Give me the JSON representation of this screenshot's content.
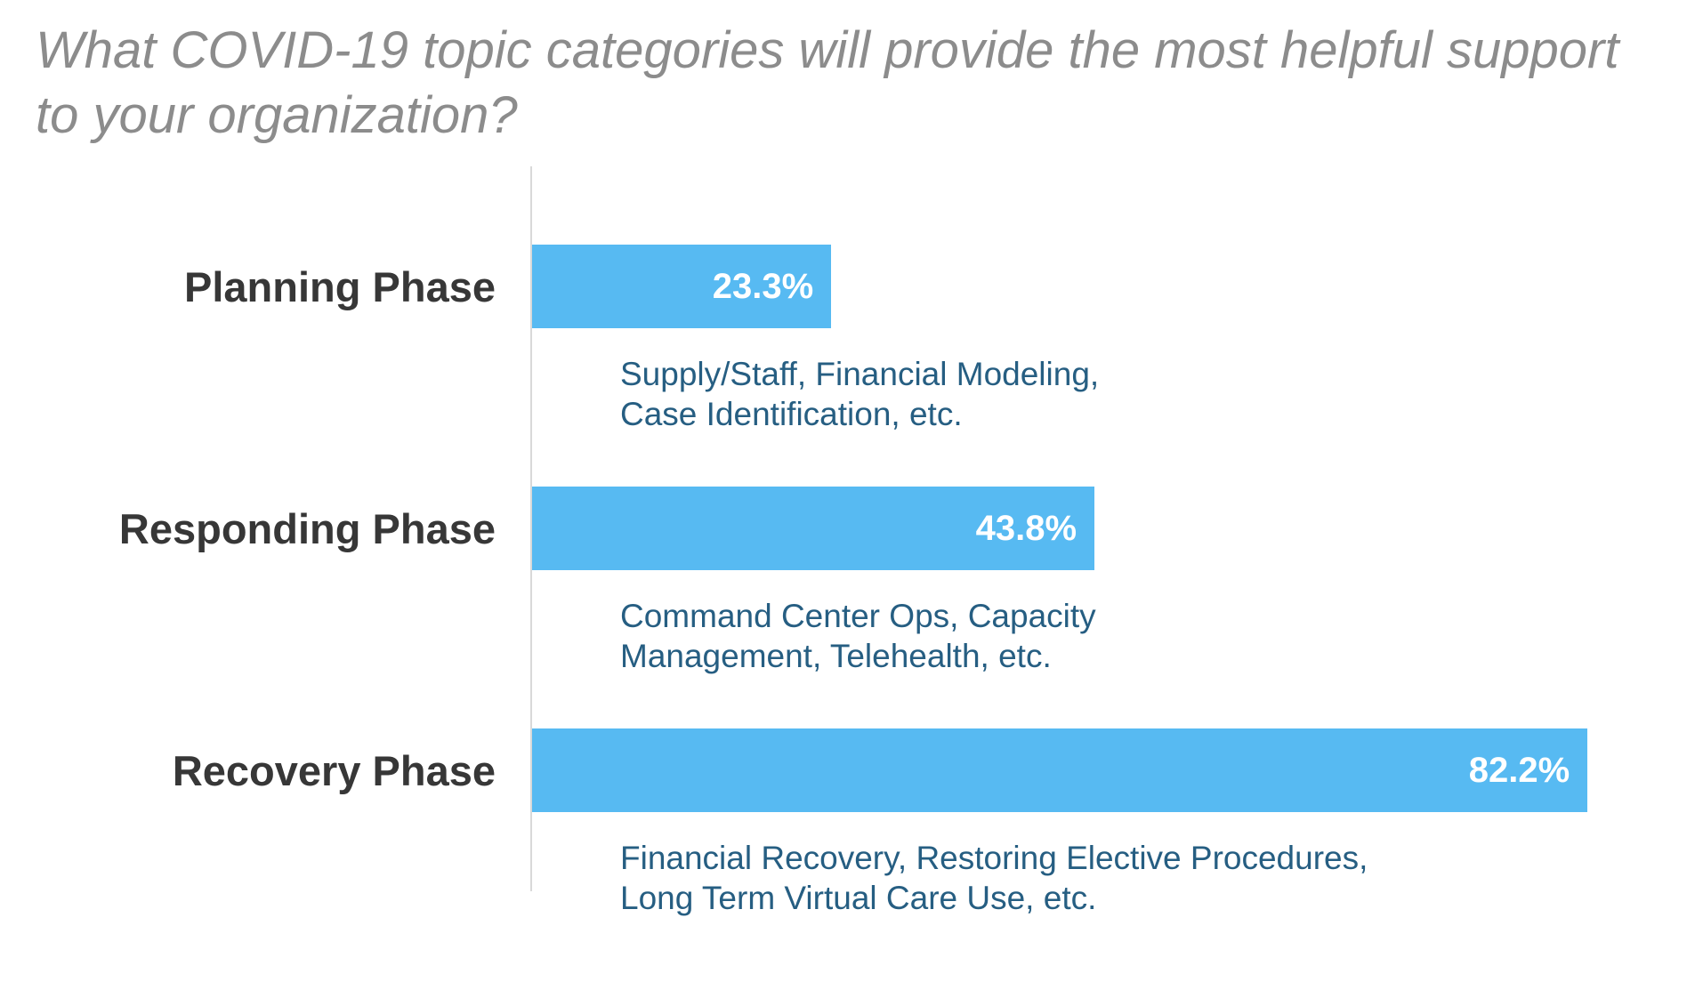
{
  "title": {
    "line1": "What COVID-19 topic categories will provide the most helpful support",
    "line2": "to your organization?"
  },
  "chart_data": {
    "type": "bar",
    "orientation": "horizontal",
    "title": "What COVID-19 topic categories will provide the most helpful support to your organization?",
    "categories": [
      "Planning Phase",
      "Responding Phase",
      "Recovery Phase"
    ],
    "values": [
      23.3,
      43.8,
      82.2
    ],
    "value_labels": [
      "23.3%",
      "43.8%",
      "82.2%"
    ],
    "unit": "%",
    "xlim": [
      0,
      91
    ],
    "grid": false,
    "legend": "none",
    "annotations": [
      "Supply/Staff, Financial Modeling, Case Identification, etc.",
      "Command Center Ops, Capacity Management, Telehealth, etc.",
      "Financial Recovery, Restoring Elective Procedures, Long Term Virtual Care Use, etc."
    ],
    "bar_color": "#57baf2",
    "value_label_color": "#ffffff"
  },
  "rows": [
    {
      "label": "Planning Phase",
      "value": 23.3,
      "value_label": "23.3%",
      "note_line1": "Supply/Staff, Financial Modeling,",
      "note_line2": "Case Identification, etc."
    },
    {
      "label": "Responding Phase",
      "value": 43.8,
      "value_label": "43.8%",
      "note_line1": "Command Center Ops, Capacity",
      "note_line2": "Management, Telehealth, etc."
    },
    {
      "label": "Recovery Phase",
      "value": 82.2,
      "value_label": "82.2%",
      "note_line1": "Financial Recovery, Restoring Elective Procedures,",
      "note_line2": "Long Term Virtual Care Use, etc."
    }
  ],
  "colors": {
    "bar": "#57baf2",
    "title_text": "#8c8c8c",
    "category_text": "#373737",
    "note_text": "#265e82",
    "value_text": "#ffffff",
    "axis_line": "#d9d9d9"
  }
}
